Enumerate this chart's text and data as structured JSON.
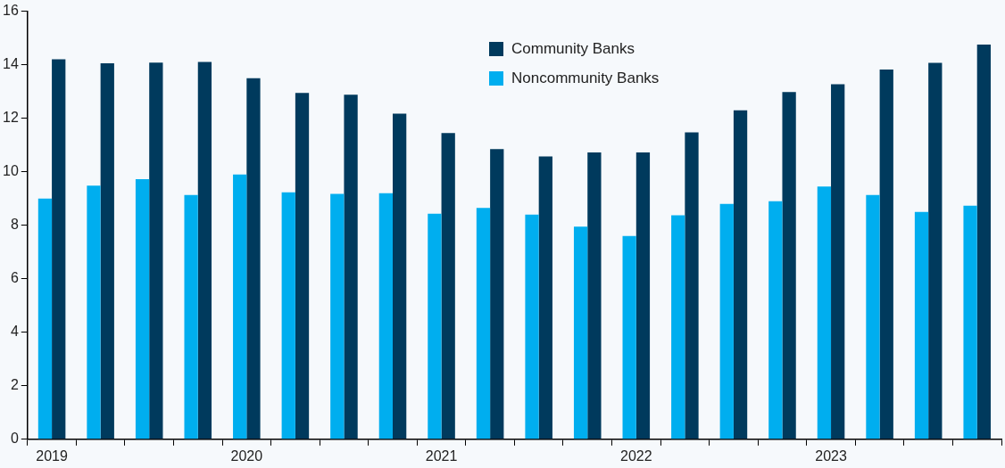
{
  "chart_data": {
    "type": "bar",
    "categories": [
      "2019",
      null,
      null,
      null,
      "2020",
      null,
      null,
      null,
      "2021",
      null,
      null,
      null,
      "2022",
      null,
      null,
      null,
      "2023",
      null,
      null,
      null
    ],
    "series": [
      {
        "name": "Noncommunity Banks",
        "color": "#00aeef",
        "values": [
          9.0,
          9.48,
          9.72,
          9.13,
          9.9,
          9.23,
          9.17,
          9.2,
          8.43,
          8.65,
          8.4,
          7.95,
          7.6,
          8.37,
          8.8,
          8.9,
          9.45,
          9.13,
          8.5,
          8.73
        ]
      },
      {
        "name": "Community Banks",
        "color": "#003a5d",
        "values": [
          14.2,
          14.05,
          14.08,
          14.1,
          13.5,
          12.95,
          12.88,
          12.17,
          11.45,
          10.85,
          10.57,
          10.72,
          10.72,
          11.47,
          12.3,
          12.98,
          13.27,
          13.82,
          14.07,
          14.75
        ]
      }
    ],
    "ylim": [
      0,
      16
    ],
    "yticks": [
      0,
      2,
      4,
      6,
      8,
      10,
      12,
      14,
      16
    ],
    "grid": false,
    "legend": "top"
  }
}
